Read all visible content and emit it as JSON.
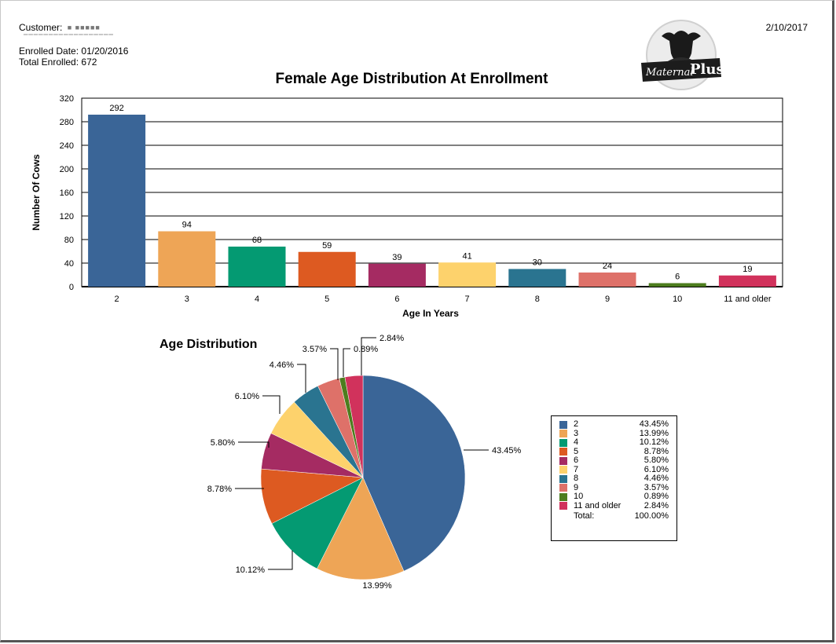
{
  "header": {
    "customer_label": "Customer:",
    "customer_value": "■ ■■■■■",
    "enrolled_date_label": "Enrolled Date:",
    "enrolled_date_value": "01/20/2016",
    "total_enrolled_label": "Total Enrolled:",
    "total_enrolled_value": "672",
    "print_date": "2/10/2017"
  },
  "logo": {
    "text": "MaternalPlus"
  },
  "colors": [
    "#3a6597",
    "#eea556",
    "#049a72",
    "#dd5a21",
    "#a52b62",
    "#fdd26c",
    "#2a7490",
    "#de7169",
    "#4d7d1e",
    "#d1325c"
  ],
  "chart_data": [
    {
      "type": "bar",
      "title": "Female Age Distribution At Enrollment",
      "xlabel": "Age In Years",
      "ylabel": "Number Of Cows",
      "categories": [
        "2",
        "3",
        "4",
        "5",
        "6",
        "7",
        "8",
        "9",
        "10",
        "11 and older"
      ],
      "values": [
        292,
        94,
        68,
        59,
        39,
        41,
        30,
        24,
        6,
        19
      ],
      "ylim": [
        0,
        320
      ],
      "yticks": [
        0,
        40,
        80,
        120,
        160,
        200,
        240,
        280,
        320
      ],
      "grid": true
    },
    {
      "type": "pie",
      "title": "Age Distribution",
      "categories": [
        "2",
        "3",
        "4",
        "5",
        "6",
        "7",
        "8",
        "9",
        "10",
        "11 and older"
      ],
      "values": [
        43.45,
        13.99,
        10.12,
        8.78,
        5.8,
        6.1,
        4.46,
        3.57,
        0.89,
        2.84
      ],
      "labels": [
        "43.45%",
        "13.99%",
        "10.12%",
        "8.78%",
        "5.80%",
        "6.10%",
        "4.46%",
        "3.57%",
        "0.89%",
        "2.84%"
      ],
      "legend": {
        "position": "right",
        "total_label": "Total:",
        "total_value": "100.00%"
      }
    }
  ]
}
